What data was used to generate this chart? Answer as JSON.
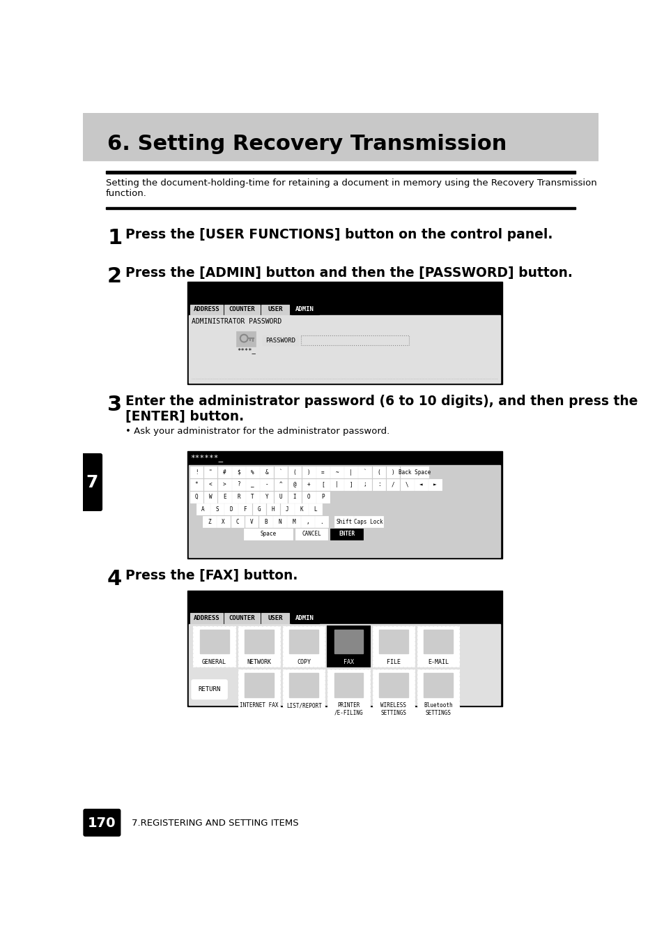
{
  "page_bg": "#ffffff",
  "header_bg": "#c8c8c8",
  "header_text": "6. Setting Recovery Transmission",
  "top_rule_color": "#000000",
  "desc_text": "Setting the document-holding-time for retaining a document in memory using the Recovery Transmission\nfunction.",
  "step1_num": "1",
  "step1_text": "Press the [USER FUNCTIONS] button on the control panel.",
  "step2_num": "2",
  "step2_text": "Press the [ADMIN] button and then the [PASSWORD] button.",
  "step3_num": "3",
  "step3_text": "Enter the administrator password (6 to 10 digits), and then press the\n[ENTER] button.",
  "step3_bullet": "Ask your administrator for the administrator password.",
  "step4_num": "4",
  "step4_text": "Press the [FAX] button.",
  "footer_text": "170",
  "footer_subtext": "7.REGISTERING AND SETTING ITEMS",
  "side_tab_text": "7"
}
